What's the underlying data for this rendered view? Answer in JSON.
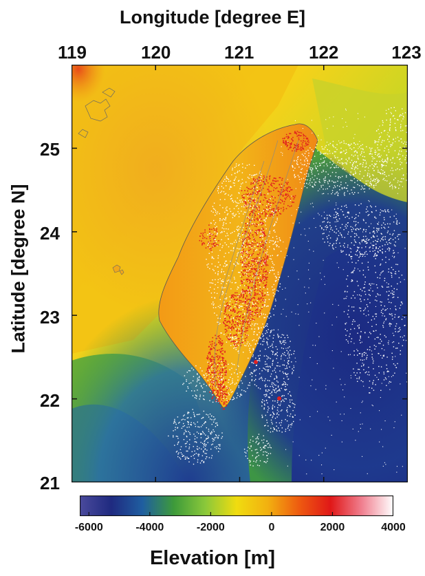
{
  "map": {
    "x_axis_title": "Longitude [degree E]",
    "y_axis_title": "Latitude [degree N]",
    "x_ticks": [
      "119",
      "120",
      "121",
      "122",
      "123"
    ],
    "y_ticks": [
      "25",
      "24",
      "23",
      "22",
      "21"
    ],
    "lon_range": [
      119,
      123
    ],
    "lat_range": [
      21,
      26
    ],
    "region": "Taiwan",
    "overlay_points_color": "#ffffff",
    "high_elevation_points_color": "#e02020"
  },
  "colorbar": {
    "title": "Elevation [m]",
    "ticks": [
      "-6000",
      "-4000",
      "-2000",
      "0",
      "2000",
      "4000"
    ],
    "range": [
      -6300,
      4000
    ],
    "colors": [
      "#4a4a9c",
      "#1f2a80",
      "#1f5ea0",
      "#3d9a3a",
      "#8ac83a",
      "#f0dc10",
      "#f2b010",
      "#ee5a10",
      "#e01818",
      "#f08090",
      "#ffffff"
    ]
  }
}
